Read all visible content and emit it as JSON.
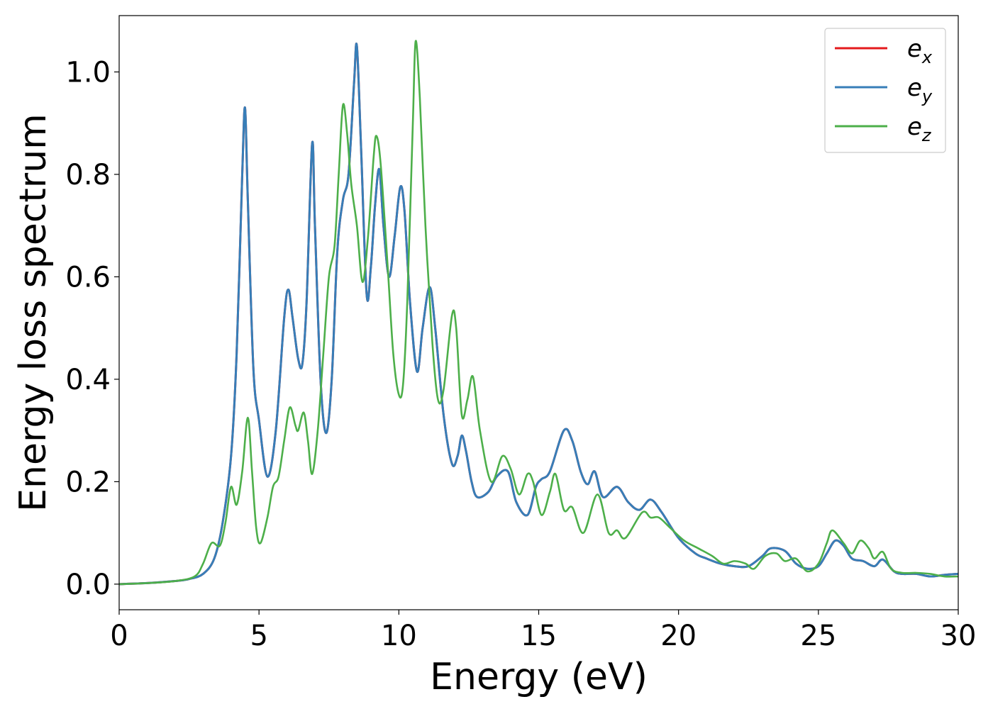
{
  "chart_data": {
    "type": "line",
    "xlabel": "Energy (eV)",
    "ylabel": "Energy loss spectrum",
    "xlim": [
      0,
      30
    ],
    "ylim": [
      -0.05,
      1.11
    ],
    "xticks": [
      0,
      5,
      10,
      15,
      20,
      25,
      30
    ],
    "xtick_labels": [
      "0",
      "5",
      "10",
      "15",
      "20",
      "25",
      "30"
    ],
    "yticks": [
      0.0,
      0.2,
      0.4,
      0.6,
      0.8,
      1.0
    ],
    "ytick_labels": [
      "0.0",
      "0.2",
      "0.4",
      "0.6",
      "0.8",
      "1.0"
    ],
    "grid": false,
    "legend_position": "top-right",
    "series": [
      {
        "name": "e_x",
        "legend_main": "e",
        "legend_sub": "x",
        "color": "#e41a1c",
        "points": [
          [
            0,
            0.0
          ],
          [
            1,
            0.002
          ],
          [
            2,
            0.006
          ],
          [
            2.5,
            0.01
          ],
          [
            3,
            0.02
          ],
          [
            3.4,
            0.05
          ],
          [
            3.7,
            0.12
          ],
          [
            4.0,
            0.25
          ],
          [
            4.2,
            0.45
          ],
          [
            4.4,
            0.8
          ],
          [
            4.5,
            0.93
          ],
          [
            4.6,
            0.75
          ],
          [
            4.8,
            0.42
          ],
          [
            5.0,
            0.32
          ],
          [
            5.3,
            0.21
          ],
          [
            5.6,
            0.3
          ],
          [
            5.9,
            0.52
          ],
          [
            6.05,
            0.575
          ],
          [
            6.2,
            0.52
          ],
          [
            6.4,
            0.44
          ],
          [
            6.55,
            0.43
          ],
          [
            6.7,
            0.55
          ],
          [
            6.9,
            0.86
          ],
          [
            7.0,
            0.7
          ],
          [
            7.2,
            0.4
          ],
          [
            7.4,
            0.295
          ],
          [
            7.6,
            0.4
          ],
          [
            7.8,
            0.65
          ],
          [
            8.0,
            0.75
          ],
          [
            8.2,
            0.8
          ],
          [
            8.4,
            0.98
          ],
          [
            8.5,
            1.05
          ],
          [
            8.65,
            0.85
          ],
          [
            8.85,
            0.565
          ],
          [
            9.0,
            0.62
          ],
          [
            9.15,
            0.74
          ],
          [
            9.3,
            0.81
          ],
          [
            9.45,
            0.7
          ],
          [
            9.65,
            0.6
          ],
          [
            9.85,
            0.68
          ],
          [
            10.05,
            0.775
          ],
          [
            10.2,
            0.73
          ],
          [
            10.4,
            0.55
          ],
          [
            10.65,
            0.415
          ],
          [
            10.85,
            0.5
          ],
          [
            11.1,
            0.58
          ],
          [
            11.3,
            0.5
          ],
          [
            11.6,
            0.33
          ],
          [
            11.9,
            0.235
          ],
          [
            12.1,
            0.25
          ],
          [
            12.25,
            0.29
          ],
          [
            12.4,
            0.26
          ],
          [
            12.6,
            0.2
          ],
          [
            12.8,
            0.17
          ],
          [
            13.2,
            0.18
          ],
          [
            13.5,
            0.21
          ],
          [
            13.9,
            0.22
          ],
          [
            14.2,
            0.16
          ],
          [
            14.6,
            0.135
          ],
          [
            14.9,
            0.19
          ],
          [
            15.1,
            0.205
          ],
          [
            15.4,
            0.22
          ],
          [
            15.9,
            0.3
          ],
          [
            16.2,
            0.28
          ],
          [
            16.5,
            0.22
          ],
          [
            16.75,
            0.195
          ],
          [
            17.0,
            0.22
          ],
          [
            17.3,
            0.17
          ],
          [
            17.8,
            0.19
          ],
          [
            18.2,
            0.16
          ],
          [
            18.6,
            0.145
          ],
          [
            19.0,
            0.165
          ],
          [
            19.4,
            0.14
          ],
          [
            20.0,
            0.09
          ],
          [
            20.6,
            0.06
          ],
          [
            21.0,
            0.05
          ],
          [
            21.5,
            0.04
          ],
          [
            22.0,
            0.035
          ],
          [
            22.5,
            0.035
          ],
          [
            23.0,
            0.055
          ],
          [
            23.3,
            0.07
          ],
          [
            23.8,
            0.065
          ],
          [
            24.2,
            0.04
          ],
          [
            24.6,
            0.03
          ],
          [
            25.0,
            0.035
          ],
          [
            25.3,
            0.06
          ],
          [
            25.6,
            0.085
          ],
          [
            25.9,
            0.075
          ],
          [
            26.2,
            0.05
          ],
          [
            26.6,
            0.045
          ],
          [
            27.0,
            0.035
          ],
          [
            27.3,
            0.048
          ],
          [
            27.7,
            0.025
          ],
          [
            28.0,
            0.02
          ],
          [
            28.5,
            0.02
          ],
          [
            29.0,
            0.015
          ],
          [
            29.5,
            0.018
          ],
          [
            30.0,
            0.02
          ]
        ]
      },
      {
        "name": "e_y",
        "legend_main": "e",
        "legend_sub": "y",
        "color": "#377eb8",
        "points": [
          [
            0,
            0.0
          ],
          [
            1,
            0.002
          ],
          [
            2,
            0.006
          ],
          [
            2.5,
            0.01
          ],
          [
            3,
            0.02
          ],
          [
            3.4,
            0.05
          ],
          [
            3.7,
            0.12
          ],
          [
            4.0,
            0.25
          ],
          [
            4.2,
            0.45
          ],
          [
            4.4,
            0.8
          ],
          [
            4.5,
            0.93
          ],
          [
            4.6,
            0.75
          ],
          [
            4.8,
            0.42
          ],
          [
            5.0,
            0.32
          ],
          [
            5.3,
            0.21
          ],
          [
            5.6,
            0.3
          ],
          [
            5.9,
            0.52
          ],
          [
            6.05,
            0.575
          ],
          [
            6.2,
            0.52
          ],
          [
            6.4,
            0.44
          ],
          [
            6.55,
            0.43
          ],
          [
            6.7,
            0.55
          ],
          [
            6.9,
            0.86
          ],
          [
            7.0,
            0.7
          ],
          [
            7.2,
            0.4
          ],
          [
            7.4,
            0.295
          ],
          [
            7.6,
            0.4
          ],
          [
            7.8,
            0.65
          ],
          [
            8.0,
            0.75
          ],
          [
            8.2,
            0.8
          ],
          [
            8.4,
            0.98
          ],
          [
            8.5,
            1.05
          ],
          [
            8.65,
            0.85
          ],
          [
            8.85,
            0.565
          ],
          [
            9.0,
            0.62
          ],
          [
            9.15,
            0.74
          ],
          [
            9.3,
            0.81
          ],
          [
            9.45,
            0.7
          ],
          [
            9.65,
            0.6
          ],
          [
            9.85,
            0.68
          ],
          [
            10.05,
            0.775
          ],
          [
            10.2,
            0.73
          ],
          [
            10.4,
            0.55
          ],
          [
            10.65,
            0.415
          ],
          [
            10.85,
            0.5
          ],
          [
            11.1,
            0.58
          ],
          [
            11.3,
            0.5
          ],
          [
            11.6,
            0.33
          ],
          [
            11.9,
            0.235
          ],
          [
            12.1,
            0.25
          ],
          [
            12.25,
            0.29
          ],
          [
            12.4,
            0.26
          ],
          [
            12.6,
            0.2
          ],
          [
            12.8,
            0.17
          ],
          [
            13.2,
            0.18
          ],
          [
            13.5,
            0.21
          ],
          [
            13.9,
            0.22
          ],
          [
            14.2,
            0.16
          ],
          [
            14.6,
            0.135
          ],
          [
            14.9,
            0.19
          ],
          [
            15.1,
            0.205
          ],
          [
            15.4,
            0.22
          ],
          [
            15.9,
            0.3
          ],
          [
            16.2,
            0.28
          ],
          [
            16.5,
            0.22
          ],
          [
            16.75,
            0.195
          ],
          [
            17.0,
            0.22
          ],
          [
            17.3,
            0.17
          ],
          [
            17.8,
            0.19
          ],
          [
            18.2,
            0.16
          ],
          [
            18.6,
            0.145
          ],
          [
            19.0,
            0.165
          ],
          [
            19.4,
            0.14
          ],
          [
            20.0,
            0.09
          ],
          [
            20.6,
            0.06
          ],
          [
            21.0,
            0.05
          ],
          [
            21.5,
            0.04
          ],
          [
            22.0,
            0.035
          ],
          [
            22.5,
            0.035
          ],
          [
            23.0,
            0.055
          ],
          [
            23.3,
            0.07
          ],
          [
            23.8,
            0.065
          ],
          [
            24.2,
            0.04
          ],
          [
            24.6,
            0.03
          ],
          [
            25.0,
            0.035
          ],
          [
            25.3,
            0.06
          ],
          [
            25.6,
            0.085
          ],
          [
            25.9,
            0.075
          ],
          [
            26.2,
            0.05
          ],
          [
            26.6,
            0.045
          ],
          [
            27.0,
            0.035
          ],
          [
            27.3,
            0.048
          ],
          [
            27.7,
            0.025
          ],
          [
            28.0,
            0.02
          ],
          [
            28.5,
            0.02
          ],
          [
            29.0,
            0.015
          ],
          [
            29.5,
            0.018
          ],
          [
            30.0,
            0.02
          ]
        ]
      },
      {
        "name": "e_z",
        "legend_main": "e",
        "legend_sub": "z",
        "color": "#4daf4a",
        "points": [
          [
            0,
            0.0
          ],
          [
            1,
            0.002
          ],
          [
            2,
            0.006
          ],
          [
            2.7,
            0.015
          ],
          [
            3.0,
            0.04
          ],
          [
            3.3,
            0.08
          ],
          [
            3.6,
            0.075
          ],
          [
            3.8,
            0.12
          ],
          [
            4.0,
            0.19
          ],
          [
            4.2,
            0.155
          ],
          [
            4.4,
            0.22
          ],
          [
            4.6,
            0.325
          ],
          [
            4.75,
            0.22
          ],
          [
            4.9,
            0.11
          ],
          [
            5.05,
            0.08
          ],
          [
            5.3,
            0.13
          ],
          [
            5.5,
            0.19
          ],
          [
            5.7,
            0.21
          ],
          [
            5.9,
            0.28
          ],
          [
            6.1,
            0.345
          ],
          [
            6.3,
            0.31
          ],
          [
            6.4,
            0.3
          ],
          [
            6.6,
            0.335
          ],
          [
            6.75,
            0.28
          ],
          [
            6.9,
            0.215
          ],
          [
            7.1,
            0.3
          ],
          [
            7.3,
            0.45
          ],
          [
            7.5,
            0.6
          ],
          [
            7.7,
            0.66
          ],
          [
            7.85,
            0.8
          ],
          [
            8.0,
            0.935
          ],
          [
            8.15,
            0.88
          ],
          [
            8.3,
            0.78
          ],
          [
            8.5,
            0.7
          ],
          [
            8.7,
            0.59
          ],
          [
            8.9,
            0.68
          ],
          [
            9.1,
            0.835
          ],
          [
            9.2,
            0.875
          ],
          [
            9.35,
            0.82
          ],
          [
            9.6,
            0.62
          ],
          [
            9.8,
            0.45
          ],
          [
            10.0,
            0.37
          ],
          [
            10.15,
            0.39
          ],
          [
            10.3,
            0.55
          ],
          [
            10.5,
            0.9
          ],
          [
            10.6,
            1.06
          ],
          [
            10.75,
            0.95
          ],
          [
            10.95,
            0.7
          ],
          [
            11.2,
            0.47
          ],
          [
            11.4,
            0.36
          ],
          [
            11.6,
            0.38
          ],
          [
            11.9,
            0.525
          ],
          [
            12.05,
            0.5
          ],
          [
            12.25,
            0.33
          ],
          [
            12.45,
            0.36
          ],
          [
            12.65,
            0.405
          ],
          [
            12.9,
            0.3
          ],
          [
            13.3,
            0.2
          ],
          [
            13.7,
            0.25
          ],
          [
            14.0,
            0.225
          ],
          [
            14.3,
            0.175
          ],
          [
            14.6,
            0.215
          ],
          [
            14.8,
            0.2
          ],
          [
            15.1,
            0.135
          ],
          [
            15.4,
            0.18
          ],
          [
            15.6,
            0.215
          ],
          [
            15.9,
            0.145
          ],
          [
            16.2,
            0.15
          ],
          [
            16.6,
            0.1
          ],
          [
            17.1,
            0.175
          ],
          [
            17.5,
            0.1
          ],
          [
            17.8,
            0.105
          ],
          [
            18.1,
            0.09
          ],
          [
            18.7,
            0.14
          ],
          [
            19.0,
            0.13
          ],
          [
            19.3,
            0.13
          ],
          [
            19.7,
            0.11
          ],
          [
            20.2,
            0.085
          ],
          [
            20.7,
            0.07
          ],
          [
            21.2,
            0.055
          ],
          [
            21.6,
            0.04
          ],
          [
            22.0,
            0.045
          ],
          [
            22.4,
            0.04
          ],
          [
            22.7,
            0.03
          ],
          [
            23.1,
            0.055
          ],
          [
            23.5,
            0.06
          ],
          [
            23.8,
            0.045
          ],
          [
            24.2,
            0.05
          ],
          [
            24.6,
            0.025
          ],
          [
            25.0,
            0.04
          ],
          [
            25.3,
            0.08
          ],
          [
            25.5,
            0.105
          ],
          [
            25.9,
            0.08
          ],
          [
            26.2,
            0.06
          ],
          [
            26.5,
            0.085
          ],
          [
            26.8,
            0.07
          ],
          [
            27.0,
            0.05
          ],
          [
            27.3,
            0.063
          ],
          [
            27.6,
            0.03
          ],
          [
            28.0,
            0.022
          ],
          [
            28.5,
            0.022
          ],
          [
            29.0,
            0.02
          ],
          [
            29.5,
            0.015
          ],
          [
            30.0,
            0.015
          ]
        ]
      }
    ]
  }
}
